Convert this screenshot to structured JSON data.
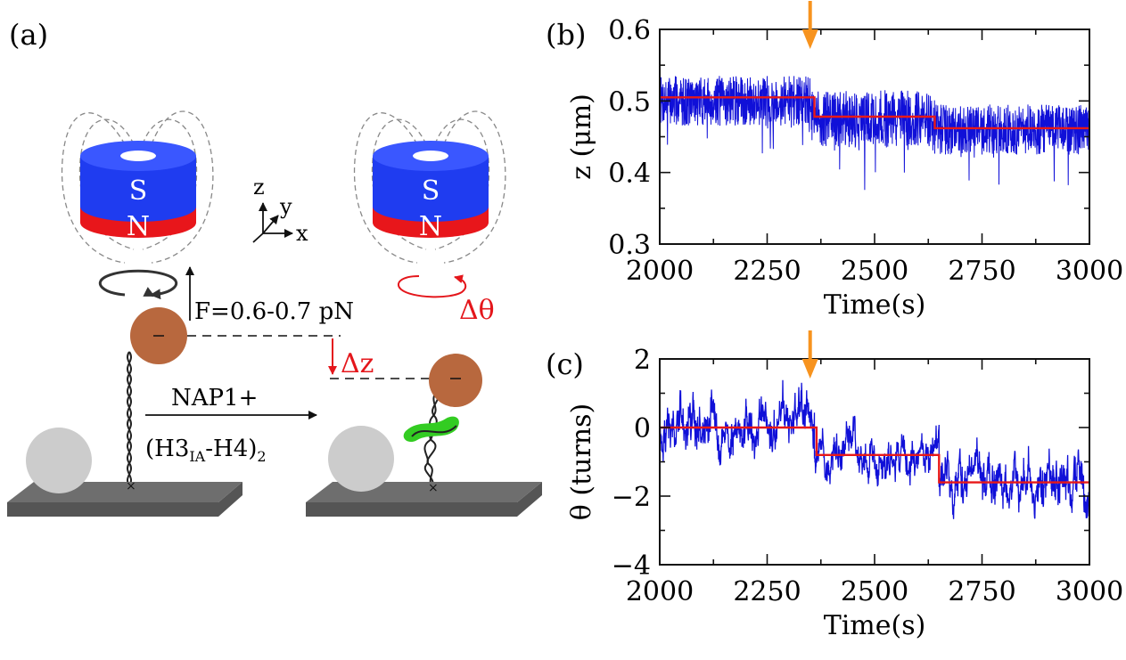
{
  "panels": {
    "a": {
      "label": "(a)",
      "magnet_left": {
        "top_pole": "S",
        "bottom_pole": "N"
      },
      "magnet_right": {
        "top_pole": "S",
        "bottom_pole": "N"
      },
      "axes_labels": {
        "z": "z",
        "y": "y",
        "x": "x"
      },
      "force_label": "F=0.6-0.7 pN",
      "dz_label": "Δz",
      "dtheta_label": "Δθ",
      "reaction_line1": "NAP1+",
      "reaction_line2_pre": "(H3",
      "reaction_line2_sub1": "IA",
      "reaction_line2_mid": "-H4)",
      "reaction_line2_sub2": "2",
      "colors": {
        "magnet_south": "#1f3cf0",
        "magnet_north": "#e8161b",
        "bead": "#b8683e",
        "reference_bead": "#cccccc",
        "surface": "#6e6e6e",
        "histone": "#33cc22",
        "annotation_red": "#e4161b"
      }
    },
    "b": {
      "label": "(b)"
    },
    "c": {
      "label": "(c)"
    }
  },
  "chart_data": [
    {
      "panel": "b",
      "type": "line",
      "xlabel": "Time(s)",
      "ylabel": "z (μm)",
      "xlim": [
        2000,
        3000
      ],
      "ylim": [
        0.3,
        0.6
      ],
      "xticks": [
        2000,
        2250,
        2500,
        2750,
        3000
      ],
      "yticks": [
        0.3,
        0.4,
        0.5,
        0.6
      ],
      "ytick_labels": [
        "0.3",
        "0.4",
        "0.5",
        "0.6"
      ],
      "grid": false,
      "event_arrow_x": 2350,
      "series": [
        {
          "color": "#1010d8",
          "kind": "noisy-trace",
          "segments": [
            {
              "x": [
                2000,
                2350
              ],
              "mean": 0.5,
              "spread": 0.035
            },
            {
              "x": [
                2350,
                2640
              ],
              "mean": 0.475,
              "spread": 0.04
            },
            {
              "x": [
                2640,
                3000
              ],
              "mean": 0.46,
              "spread": 0.035
            }
          ]
        },
        {
          "color": "#e81818",
          "kind": "step-fit",
          "x": [
            2000,
            2360,
            2360,
            2640,
            2640,
            3000
          ],
          "y": [
            0.505,
            0.505,
            0.478,
            0.478,
            0.462,
            0.462
          ]
        }
      ]
    },
    {
      "panel": "c",
      "type": "line",
      "xlabel": "Time(s)",
      "ylabel": "θ (turns)",
      "xlim": [
        2000,
        3000
      ],
      "ylim": [
        -4,
        2
      ],
      "xticks": [
        2000,
        2250,
        2500,
        2750,
        3000
      ],
      "yticks": [
        -4,
        -2,
        0,
        2
      ],
      "ytick_labels": [
        "−4",
        "−2",
        "0",
        "2"
      ],
      "grid": false,
      "event_arrow_x": 2350,
      "series": [
        {
          "color": "#1010d8",
          "kind": "noisy-trace",
          "segments": [
            {
              "x": [
                2000,
                2360
              ],
              "mean": 0.0,
              "spread": 0.7
            },
            {
              "x": [
                2360,
                2650
              ],
              "mean": -0.8,
              "spread": 0.6
            },
            {
              "x": [
                2650,
                3000
              ],
              "mean": -1.6,
              "spread": 0.7
            }
          ]
        },
        {
          "color": "#e81818",
          "kind": "step-fit",
          "x": [
            2000,
            2365,
            2365,
            2650,
            2650,
            3000
          ],
          "y": [
            0.0,
            0.0,
            -0.8,
            -0.8,
            -1.6,
            -1.6
          ]
        }
      ]
    }
  ]
}
